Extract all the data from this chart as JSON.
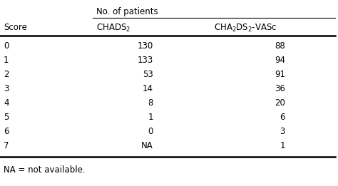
{
  "header_group": "No. of patients",
  "col1_header": "Score",
  "col2_header": "CHADS$_2$",
  "col3_header": "CHA$_2$DS$_2$-VASc",
  "scores": [
    "0",
    "1",
    "2",
    "3",
    "4",
    "5",
    "6",
    "7"
  ],
  "chads2": [
    "130",
    "133",
    "53",
    "14",
    "8",
    "1",
    "0",
    "NA"
  ],
  "cha2ds2vasc": [
    "88",
    "94",
    "91",
    "36",
    "20",
    "6",
    "3",
    "1"
  ],
  "footnote": "NA = not available.",
  "bg_color": "#ffffff",
  "text_color": "#000000",
  "font_size": 8.5
}
